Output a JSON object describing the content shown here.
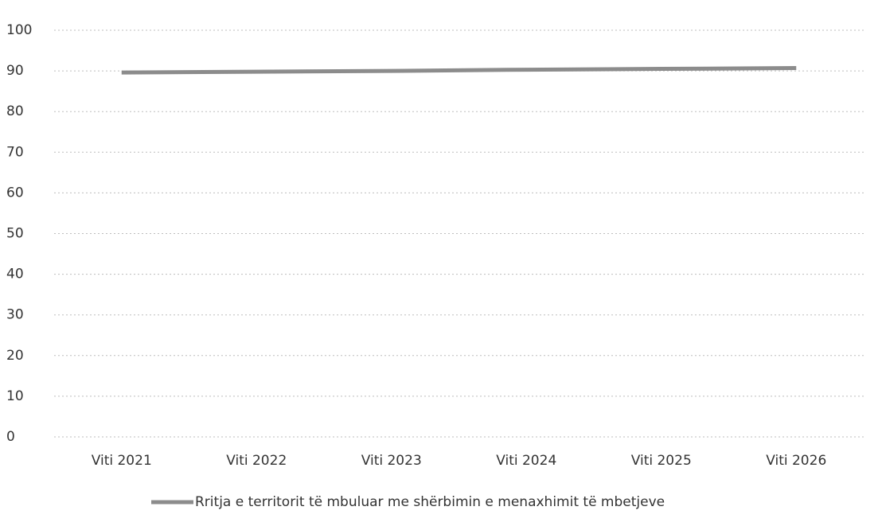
{
  "chart_data": {
    "type": "line",
    "categories": [
      "Viti 2021",
      "Viti 2022",
      "Viti 2023",
      "Viti 2024",
      "Viti 2025",
      "Viti 2026"
    ],
    "series": [
      {
        "name": "Rritja e territorit të mbuluar me shërbimin e menaxhimit të mbetjeve",
        "color": "#8c8c8c",
        "values": [
          89.6,
          89.8,
          90.0,
          90.3,
          90.5,
          90.7
        ]
      }
    ],
    "ylim": [
      0,
      100
    ],
    "yticks": [
      0,
      10,
      20,
      30,
      40,
      50,
      60,
      70,
      80,
      90,
      100
    ],
    "grid": true,
    "legend": "bottom"
  }
}
